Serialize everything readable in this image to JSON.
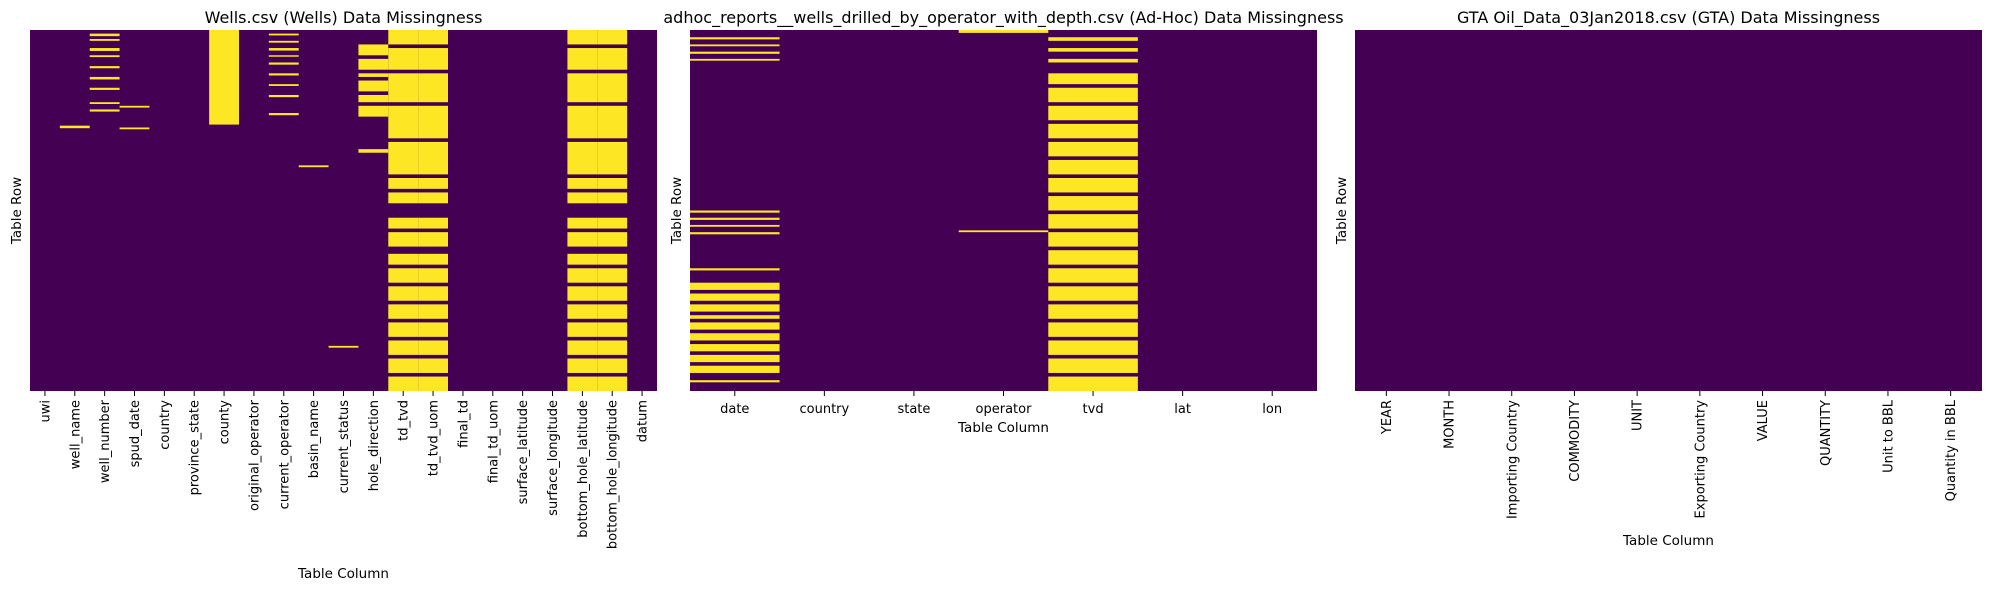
{
  "colors": {
    "present": "#440154",
    "missing": "#fde725"
  },
  "chart_data": [
    {
      "type": "heatmap",
      "title": "Wells.csv (Wells) Data Missingness",
      "xlabel": "Table Column",
      "ylabel": "Table Row",
      "categories": [
        "uwi",
        "well_name",
        "well_number",
        "spud_date",
        "country",
        "province_state",
        "county",
        "original_operator",
        "current_operator",
        "basin_name",
        "current_status",
        "hole_direction",
        "td_tvd",
        "td_tvd_uom",
        "final_td",
        "final_td_uom",
        "surface_latitude",
        "surface_longitude",
        "bottom_hole_latitude",
        "bottom_hole_longitude",
        "datum"
      ],
      "tick_rotation": 90,
      "missing": [
        {
          "col": 1,
          "rows": [
            [
              0.265,
              0.272
            ]
          ]
        },
        {
          "col": 2,
          "rows": [
            [
              0.01,
              0.017
            ],
            [
              0.025,
              0.03
            ],
            [
              0.05,
              0.058
            ],
            [
              0.07,
              0.075
            ],
            [
              0.1,
              0.106
            ],
            [
              0.13,
              0.137
            ],
            [
              0.16,
              0.166
            ],
            [
              0.2,
              0.205
            ],
            [
              0.22,
              0.226
            ]
          ]
        },
        {
          "col": 3,
          "rows": [
            [
              0.21,
              0.215
            ],
            [
              0.27,
              0.275
            ]
          ]
        },
        {
          "col": 6,
          "rows": [
            [
              0.0,
              0.262
            ]
          ]
        },
        {
          "col": 8,
          "rows": [
            [
              0.01,
              0.015
            ],
            [
              0.03,
              0.035
            ],
            [
              0.05,
              0.057
            ],
            [
              0.07,
              0.074
            ],
            [
              0.09,
              0.096
            ],
            [
              0.12,
              0.126
            ],
            [
              0.15,
              0.155
            ],
            [
              0.18,
              0.186
            ],
            [
              0.23,
              0.236
            ]
          ]
        },
        {
          "col": 9,
          "rows": [
            [
              0.375,
              0.38
            ]
          ]
        },
        {
          "col": 10,
          "rows": [
            [
              0.875,
              0.88
            ]
          ]
        },
        {
          "col": 11,
          "rows": [
            [
              0.04,
              0.07
            ],
            [
              0.08,
              0.11
            ],
            [
              0.12,
              0.13
            ],
            [
              0.14,
              0.17
            ],
            [
              0.18,
              0.2
            ],
            [
              0.21,
              0.24
            ],
            [
              0.33,
              0.34
            ]
          ]
        },
        {
          "col": 12,
          "rows": [
            [
              0.0,
              0.04
            ],
            [
              0.05,
              0.11
            ],
            [
              0.12,
              0.2
            ],
            [
              0.21,
              0.3
            ],
            [
              0.31,
              0.4
            ],
            [
              0.41,
              0.44
            ],
            [
              0.45,
              0.48
            ],
            [
              0.52,
              0.55
            ],
            [
              0.56,
              0.6
            ],
            [
              0.62,
              0.65
            ],
            [
              0.66,
              0.7
            ],
            [
              0.71,
              0.75
            ],
            [
              0.76,
              0.8
            ],
            [
              0.81,
              0.85
            ],
            [
              0.86,
              0.9
            ],
            [
              0.91,
              0.95
            ],
            [
              0.96,
              1.0
            ]
          ]
        },
        {
          "col": 13,
          "rows": [
            [
              0.0,
              0.04
            ],
            [
              0.05,
              0.11
            ],
            [
              0.12,
              0.2
            ],
            [
              0.21,
              0.3
            ],
            [
              0.31,
              0.4
            ],
            [
              0.41,
              0.44
            ],
            [
              0.45,
              0.48
            ],
            [
              0.52,
              0.55
            ],
            [
              0.56,
              0.6
            ],
            [
              0.62,
              0.65
            ],
            [
              0.66,
              0.7
            ],
            [
              0.71,
              0.75
            ],
            [
              0.76,
              0.8
            ],
            [
              0.81,
              0.85
            ],
            [
              0.86,
              0.9
            ],
            [
              0.91,
              0.95
            ],
            [
              0.96,
              1.0
            ]
          ]
        },
        {
          "col": 18,
          "rows": [
            [
              0.0,
              0.04
            ],
            [
              0.05,
              0.11
            ],
            [
              0.12,
              0.2
            ],
            [
              0.21,
              0.3
            ],
            [
              0.31,
              0.4
            ],
            [
              0.41,
              0.44
            ],
            [
              0.45,
              0.48
            ],
            [
              0.52,
              0.55
            ],
            [
              0.56,
              0.6
            ],
            [
              0.62,
              0.65
            ],
            [
              0.66,
              0.7
            ],
            [
              0.71,
              0.75
            ],
            [
              0.76,
              0.8
            ],
            [
              0.81,
              0.85
            ],
            [
              0.86,
              0.9
            ],
            [
              0.91,
              0.95
            ],
            [
              0.96,
              1.0
            ]
          ]
        },
        {
          "col": 19,
          "rows": [
            [
              0.0,
              0.04
            ],
            [
              0.05,
              0.11
            ],
            [
              0.12,
              0.2
            ],
            [
              0.21,
              0.3
            ],
            [
              0.31,
              0.4
            ],
            [
              0.41,
              0.44
            ],
            [
              0.45,
              0.48
            ],
            [
              0.52,
              0.55
            ],
            [
              0.56,
              0.6
            ],
            [
              0.62,
              0.65
            ],
            [
              0.66,
              0.7
            ],
            [
              0.71,
              0.75
            ],
            [
              0.76,
              0.8
            ],
            [
              0.81,
              0.85
            ],
            [
              0.86,
              0.9
            ],
            [
              0.91,
              0.95
            ],
            [
              0.96,
              1.0
            ]
          ]
        }
      ]
    },
    {
      "type": "heatmap",
      "title": "adhoc_reports__wells_drilled_by_operator_with_depth.csv (Ad-Hoc) Data Missingness",
      "xlabel": "Table Column",
      "ylabel": "Table Row",
      "categories": [
        "date",
        "country",
        "state",
        "operator",
        "tvd",
        "lat",
        "lon"
      ],
      "tick_rotation": 0,
      "missing": [
        {
          "col": 0,
          "rows": [
            [
              0.02,
              0.026
            ],
            [
              0.04,
              0.045
            ],
            [
              0.06,
              0.066
            ],
            [
              0.08,
              0.085
            ],
            [
              0.5,
              0.506
            ],
            [
              0.52,
              0.526
            ],
            [
              0.54,
              0.545
            ],
            [
              0.56,
              0.566
            ],
            [
              0.66,
              0.666
            ],
            [
              0.7,
              0.72
            ],
            [
              0.73,
              0.75
            ],
            [
              0.76,
              0.78
            ],
            [
              0.79,
              0.8
            ],
            [
              0.81,
              0.83
            ],
            [
              0.84,
              0.86
            ],
            [
              0.87,
              0.89
            ],
            [
              0.9,
              0.92
            ],
            [
              0.93,
              0.95
            ],
            [
              0.97,
              0.976
            ]
          ]
        },
        {
          "col": 3,
          "rows": [
            [
              0.0,
              0.008
            ],
            [
              0.555,
              0.56
            ]
          ]
        },
        {
          "col": 4,
          "rows": [
            [
              0.02,
              0.03
            ],
            [
              0.05,
              0.06
            ],
            [
              0.08,
              0.09
            ],
            [
              0.12,
              0.15
            ],
            [
              0.16,
              0.2
            ],
            [
              0.21,
              0.25
            ],
            [
              0.26,
              0.3
            ],
            [
              0.31,
              0.35
            ],
            [
              0.36,
              0.4
            ],
            [
              0.41,
              0.45
            ],
            [
              0.46,
              0.5
            ],
            [
              0.51,
              0.55
            ],
            [
              0.56,
              0.6
            ],
            [
              0.61,
              0.65
            ],
            [
              0.66,
              0.7
            ],
            [
              0.71,
              0.75
            ],
            [
              0.76,
              0.8
            ],
            [
              0.81,
              0.85
            ],
            [
              0.86,
              0.9
            ],
            [
              0.91,
              0.95
            ],
            [
              0.96,
              1.0
            ]
          ]
        }
      ]
    },
    {
      "type": "heatmap",
      "title": "GTA Oil_Data_03Jan2018.csv (GTA) Data Missingness",
      "xlabel": "Table Column",
      "ylabel": "Table Row",
      "categories": [
        "YEAR",
        "MONTH",
        "Importing Country",
        "COMMODITY",
        "UNIT",
        "Exporting Country",
        "VALUE",
        "QUANTITY",
        "Unit to BBL",
        "Quantity in BBL"
      ],
      "tick_rotation": 90,
      "missing": []
    }
  ]
}
